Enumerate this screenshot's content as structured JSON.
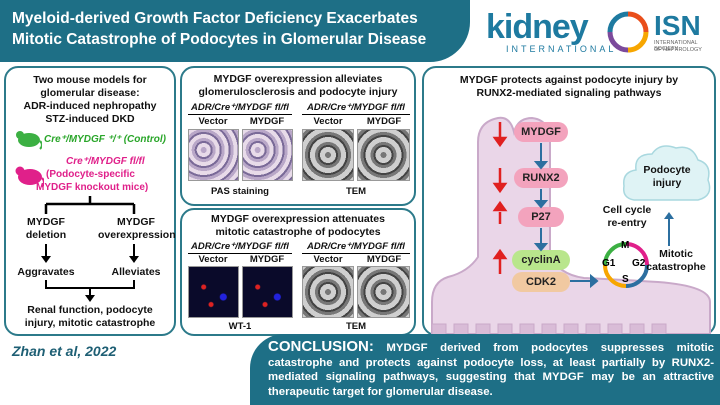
{
  "title": "Myeloid-derived Growth Factor Deficiency Exacerbates Mitotic Catastrophe of Podocytes in Glomerular Disease",
  "logos": {
    "kidney_word": "kidney",
    "kidney_sub": "INTERNATIONAL",
    "isn_word": "ISN",
    "isn_sub1": "INTERNATIONAL SOCIETY",
    "isn_sub2": "OF NEPHROLOGY"
  },
  "left_panel": {
    "line1": "Two mouse models for",
    "line2": "glomerular disease:",
    "line3": "ADR-induced nephropathy",
    "line4": "STZ-induced DKD",
    "control_label": "Cre⁺/MYDGF ⁺/⁺ (Control)",
    "ko_label": "Cre⁺/MYDGF fl/fl",
    "ko_desc1": "(Podocyte-specific",
    "ko_desc2": "MYDGF knockout mice)",
    "branch_left1": "MYDGF",
    "branch_left2": "deletion",
    "branch_right1": "MYDGF",
    "branch_right2": "overexpression",
    "outcome_left": "Aggravates",
    "outcome_right": "Alleviates",
    "result1": "Renal function, podocyte",
    "result2": "injury, mitotic catastrophe"
  },
  "mid_top": {
    "title1": "MYDGF overexpression alleviates",
    "title2": "glomerulosclerosis and podocyte injury",
    "group_label": "ADR/Cre⁺/MYDGF fl/fl",
    "col_vector": "Vector",
    "col_mydgf": "MYDGF",
    "stain_left": "PAS staining",
    "stain_right": "TEM"
  },
  "mid_bottom": {
    "title1": "MYDGF overexpression attenuates",
    "title2": "mitotic catastrophe of podocytes",
    "group_label": "ADR/Cre⁺/MYDGF fl/fl",
    "col_vector": "Vector",
    "col_mydgf": "MYDGF",
    "stain_left": "WT-1",
    "stain_right": "TEM"
  },
  "right_panel": {
    "title1": "MYDGF protects against podocyte injury by",
    "title2": "RUNX2-mediated signaling pathways",
    "nodes": [
      "MYDGF",
      "RUNX2",
      "P27",
      "cyclinA",
      "CDK2"
    ],
    "cycle_label1": "Cell cycle",
    "cycle_label2": "re-entry",
    "phases": [
      "M",
      "G1",
      "G2",
      "S"
    ],
    "cloud_label1": "Podocyte",
    "cloud_label2": "injury",
    "mitotic1": "Mitotic",
    "mitotic2": "catastrophe"
  },
  "citation": "Zhan et al, 2022",
  "conclusion": {
    "heading": "CONCLUSION:",
    "text": " MYDGF derived from podocytes suppresses mitotic catastrophe and protects against podocyte loss, at least partially by RUNX2-mediated signaling pathways, suggesting that MYDGF may be an attractive therapeutic target for glomerular disease."
  },
  "colors": {
    "teal": "#1e6f86",
    "panel_border": "#2c7a8a",
    "control_green": "#2aa62a",
    "ko_magenta": "#e0208a",
    "down_arrow_red": "#e02020"
  },
  "icons": [
    "green-mouse-icon",
    "pink-mouse-icon",
    "podocyte-shape",
    "cloud-icon",
    "cell-cycle-icon"
  ]
}
